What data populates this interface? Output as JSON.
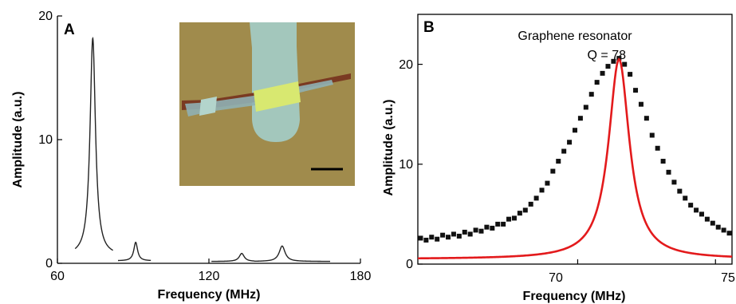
{
  "chart_data": [
    {
      "panel": "A",
      "type": "line",
      "xlabel": "Frequency (MHz)",
      "ylabel": "Amplitude (a.u.)",
      "xlim": [
        60,
        180
      ],
      "ylim": [
        0,
        20
      ],
      "xticks": [
        60,
        120,
        180
      ],
      "yticks": [
        0,
        10,
        20
      ],
      "series_color": "#222222",
      "peaks": [
        {
          "center": 74,
          "height": 18.2,
          "width": 1.3,
          "baseline": 0.6,
          "range": [
            67,
            82
          ]
        },
        {
          "center": 91,
          "height": 1.7,
          "width": 0.9,
          "baseline": 0.2,
          "range": [
            84,
            97
          ]
        },
        {
          "center": 133,
          "height": 0.8,
          "width": 1.2,
          "baseline": 0.15,
          "range": [
            121,
            138
          ]
        },
        {
          "center": 149,
          "height": 1.4,
          "width": 1.4,
          "baseline": 0.15,
          "range": [
            138,
            168
          ]
        }
      ],
      "inset": {
        "kind": "optical micrograph of a graphene resonator",
        "scale_bar": true
      }
    },
    {
      "panel": "B",
      "type": "scatter",
      "title": "Graphene resonator",
      "annotation": "Q = 78",
      "xlabel": "Frequency (MHz)",
      "ylabel": "Amplitude (a.u.)",
      "xlim": [
        64.2,
        75.6
      ],
      "ylim": [
        0,
        25
      ],
      "xticks": [
        70,
        75
      ],
      "yticks": [
        0,
        10,
        20
      ],
      "data_color": "#111111",
      "fit_color": "#e31a1c",
      "fit": {
        "center": 71.5,
        "peak": 20.5,
        "Q": 78,
        "baseline": 0.5
      },
      "points": [
        [
          64.3,
          2.6
        ],
        [
          64.5,
          2.4
        ],
        [
          64.7,
          2.7
        ],
        [
          64.9,
          2.5
        ],
        [
          65.1,
          2.9
        ],
        [
          65.3,
          2.7
        ],
        [
          65.5,
          3.0
        ],
        [
          65.7,
          2.8
        ],
        [
          65.9,
          3.2
        ],
        [
          66.1,
          3.0
        ],
        [
          66.3,
          3.4
        ],
        [
          66.5,
          3.3
        ],
        [
          66.7,
          3.7
        ],
        [
          66.9,
          3.6
        ],
        [
          67.1,
          4.0
        ],
        [
          67.3,
          4.0
        ],
        [
          67.5,
          4.5
        ],
        [
          67.7,
          4.6
        ],
        [
          67.9,
          5.1
        ],
        [
          68.1,
          5.4
        ],
        [
          68.3,
          6.0
        ],
        [
          68.5,
          6.6
        ],
        [
          68.7,
          7.4
        ],
        [
          68.9,
          8.1
        ],
        [
          69.1,
          9.3
        ],
        [
          69.3,
          10.3
        ],
        [
          69.5,
          11.3
        ],
        [
          69.7,
          12.2
        ],
        [
          69.9,
          13.4
        ],
        [
          70.1,
          14.6
        ],
        [
          70.3,
          15.7
        ],
        [
          70.5,
          17.0
        ],
        [
          70.7,
          18.2
        ],
        [
          70.9,
          19.1
        ],
        [
          71.1,
          19.8
        ],
        [
          71.3,
          20.3
        ],
        [
          71.5,
          20.6
        ],
        [
          71.7,
          20.0
        ],
        [
          71.9,
          19.0
        ],
        [
          72.1,
          17.4
        ],
        [
          72.3,
          16.0
        ],
        [
          72.5,
          14.6
        ],
        [
          72.7,
          12.9
        ],
        [
          72.9,
          11.6
        ],
        [
          73.1,
          10.3
        ],
        [
          73.3,
          9.2
        ],
        [
          73.5,
          8.2
        ],
        [
          73.7,
          7.3
        ],
        [
          73.9,
          6.6
        ],
        [
          74.1,
          5.9
        ],
        [
          74.3,
          5.4
        ],
        [
          74.5,
          5.0
        ],
        [
          74.7,
          4.5
        ],
        [
          74.9,
          4.1
        ],
        [
          75.1,
          3.7
        ],
        [
          75.3,
          3.4
        ],
        [
          75.5,
          3.1
        ]
      ]
    }
  ],
  "panel_labels": {
    "a": "A",
    "b": "B"
  },
  "text": {
    "a_xlabel": "Frequency (MHz)",
    "a_ylabel": "Amplitude (a.u.)",
    "b_xlabel": "Frequency (MHz)",
    "b_ylabel": "Amplitude (a.u.)",
    "b_title": "Graphene resonator",
    "b_q": "Q = 78",
    "a_xt0": "60",
    "a_xt1": "120",
    "a_xt2": "180",
    "a_yt0": "0",
    "a_yt1": "10",
    "a_yt2": "20",
    "b_xt0": "70",
    "b_xt1": "75",
    "b_yt0": "0",
    "b_yt1": "10",
    "b_yt2": "20"
  }
}
